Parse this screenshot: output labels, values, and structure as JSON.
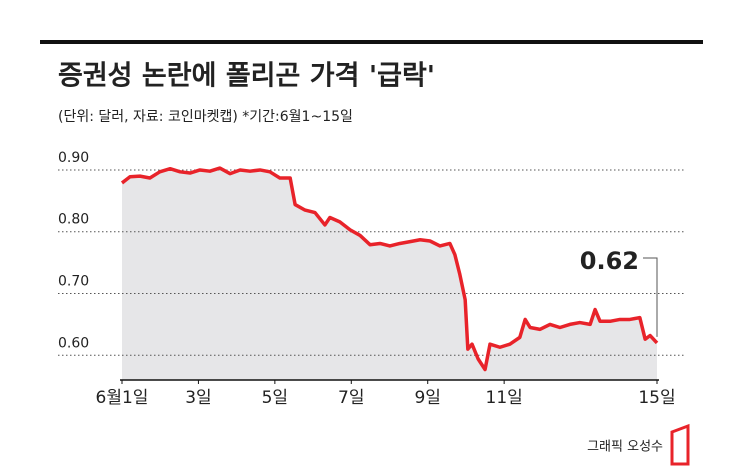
{
  "chart_data": {
    "type": "line",
    "title": "증권성 논란에 폴리곤 가격 '급락'",
    "subtitle": "(단위: 달러, 자료: 코인마켓캡)  *기간:6월1~15일",
    "credit": "그래픽 오성수",
    "annotation": "0.62",
    "x": [
      1,
      1.21,
      1.47,
      1.73,
      1.99,
      2.26,
      2.52,
      2.78,
      3.04,
      3.3,
      3.56,
      3.83,
      4.09,
      4.35,
      4.61,
      4.87,
      5.13,
      5.4,
      5.53,
      5.79,
      6.05,
      6.31,
      6.44,
      6.7,
      6.97,
      7.23,
      7.49,
      7.75,
      8.01,
      8.27,
      8.54,
      8.8,
      9.06,
      9.32,
      9.58,
      9.71,
      9.84,
      9.98,
      10.05,
      10.16,
      10.32,
      10.5,
      10.63,
      10.89,
      11.15,
      11.41,
      11.55,
      11.68,
      11.94,
      12.2,
      12.46,
      12.72,
      12.98,
      13.25,
      13.38,
      13.51,
      13.77,
      14.03,
      14.29,
      14.55,
      14.69,
      14.82,
      15
    ],
    "series": [
      {
        "name": "폴리곤",
        "color": "#e8232a",
        "values": [
          0.879,
          0.889,
          0.89,
          0.887,
          0.897,
          0.902,
          0.897,
          0.895,
          0.9,
          0.898,
          0.903,
          0.894,
          0.9,
          0.898,
          0.9,
          0.897,
          0.887,
          0.887,
          0.844,
          0.835,
          0.831,
          0.811,
          0.823,
          0.816,
          0.803,
          0.794,
          0.779,
          0.781,
          0.777,
          0.781,
          0.784,
          0.787,
          0.785,
          0.777,
          0.781,
          0.763,
          0.731,
          0.69,
          0.61,
          0.618,
          0.594,
          0.577,
          0.618,
          0.613,
          0.618,
          0.629,
          0.658,
          0.645,
          0.642,
          0.65,
          0.645,
          0.65,
          0.653,
          0.65,
          0.674,
          0.655,
          0.655,
          0.658,
          0.658,
          0.661,
          0.626,
          0.632,
          0.62
        ]
      }
    ],
    "area_color": "#e6e6e8",
    "xlim": [
      1,
      15
    ],
    "xticks": [
      {
        "value": 1,
        "label": "6월1일"
      },
      {
        "value": 3,
        "label": "3일"
      },
      {
        "value": 5,
        "label": "5일"
      },
      {
        "value": 7,
        "label": "7일"
      },
      {
        "value": 9,
        "label": "9일"
      },
      {
        "value": 11,
        "label": "11일"
      },
      {
        "value": 15,
        "label": "15일"
      }
    ],
    "ylim": [
      0.56,
      0.92
    ],
    "yticks": [
      {
        "value": 0.9,
        "label": "0.90"
      },
      {
        "value": 0.8,
        "label": "0.80"
      },
      {
        "value": 0.7,
        "label": "0.70"
      },
      {
        "value": 0.6,
        "label": "0.60"
      }
    ],
    "grid": true
  }
}
